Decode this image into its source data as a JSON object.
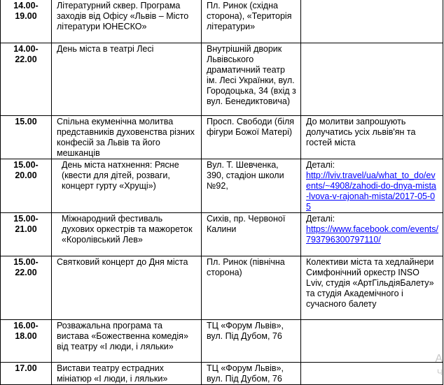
{
  "rows": [
    {
      "time": "14.00-\n19.00",
      "event": "Літературний сквер. Програма заходів від Офісу «Львів – Місто літератури ЮНЕСКО»",
      "place": "Пл. Ринок (східна сторона), «Територія літератури»",
      "note": "",
      "link": ""
    },
    {
      "time": "14.00-\n22.00",
      "event": "День міста в театрі Лесі",
      "place": "Внутрішній дворик Львівського драматичний театр ім. Лесі Українки, вул. Городоцька, 34 (вхід з вул. Бенедиктовича)",
      "note": "",
      "link": ""
    },
    {
      "time": "15.00",
      "event": "Спільна екуменічна молитва представників духовенства різних конфесій за Львів та його мешканців",
      "place": "Просп. Свободи (біля фігури Божої Матері)",
      "note": "До молитви запрошують долучатись усіх львів'ян та гостей міста",
      "link": ""
    },
    {
      "time": "15.00-\n20.00",
      "event": "День міста натхнення: Рясне (квести для дітей, розваги, концерт гурту «Хрущі»)",
      "place": "Вул. Т. Шевченка, 390, стадіон школи №92,",
      "note": "Деталі:",
      "link": "http://lviv.travel/ua/what_to_do/events/~4908/zahodi-do-dnya-mista-lvova-v-rajonah-mista/2017-05-05"
    },
    {
      "time": "15.00-\n21.00",
      "event": "Міжнародний фестиваль духових оркестрів та мажореток «Королівський Лев»",
      "place": "Сихів, пр. Червоної Калини",
      "note": "Деталі:",
      "link": "https://www.facebook.com/events/793796300797110/"
    },
    {
      "time": "15.00-\n22.00",
      "event": "Святковий концерт до Дня міста",
      "place": "Пл. Ринок (північна сторона)",
      "note": "Колективи міста та хедлайнери Симфонічний оркестр INSO Lviv, студія «АртГільдіяБалету» та студія Академічного і сучасного балету",
      "link": ""
    },
    {
      "time": "16.00-\n18.00",
      "event": "Розважальна програма та вистава «Божественна комедія» від театру «І люди, і ляльки»",
      "place": "ТЦ «Форум Львів», вул. Під Дубом, 76",
      "note": "",
      "link": ""
    },
    {
      "time": "17.00",
      "event": "Вистави театру естрадних мініатюр «І люди, і ляльки»",
      "place": "ТЦ «Форум Львів», вул. Під Дубом, 76",
      "note": "",
      "link": ""
    }
  ],
  "watermark": [
    "А",
    "Ч"
  ]
}
